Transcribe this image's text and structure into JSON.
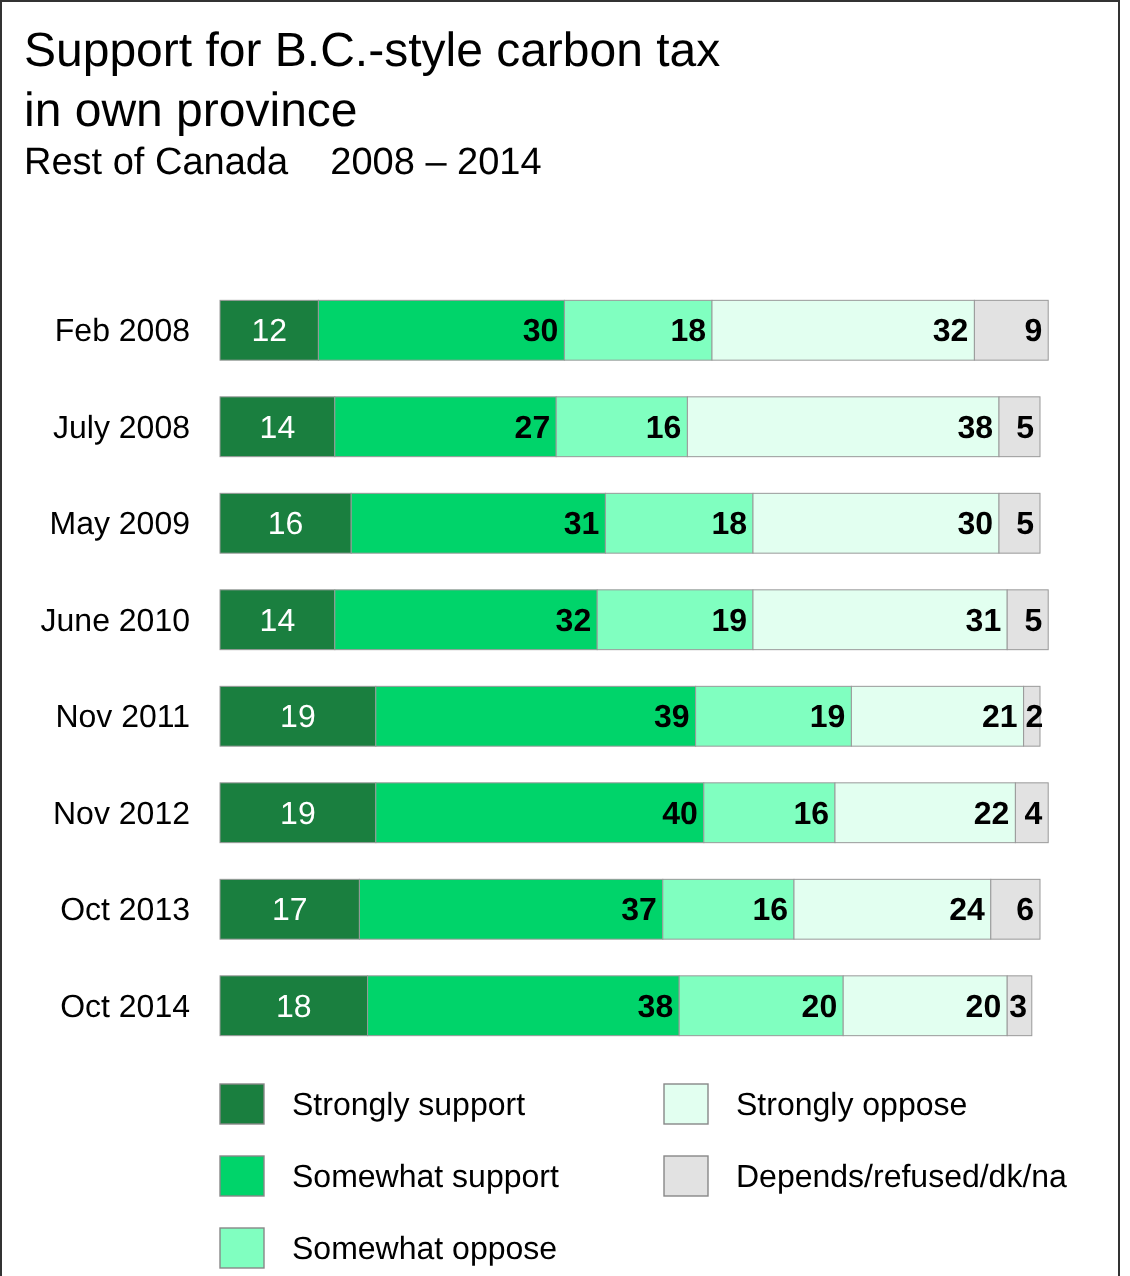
{
  "chart_data": {
    "type": "bar",
    "orientation": "horizontal",
    "stacked": true,
    "data_labels": true,
    "legend": "bottom",
    "title": "Support for B.C.-style carbon tax\nin own province",
    "subtitle": "Rest of Canada    2008 – 2014",
    "categories": [
      "Feb 2008",
      "July 2008",
      "May 2009",
      "June 2010",
      "Nov 2011",
      "Nov 2012",
      "Oct 2013",
      "Oct 2014"
    ],
    "series": [
      {
        "name": "Strongly support",
        "color": "#1a7f3f",
        "values": [
          12,
          14,
          16,
          14,
          19,
          19,
          17,
          18
        ]
      },
      {
        "name": "Somewhat support",
        "color": "#00d46a",
        "values": [
          30,
          27,
          31,
          32,
          39,
          40,
          37,
          38
        ]
      },
      {
        "name": "Somewhat oppose",
        "color": "#80ffc0",
        "values": [
          18,
          16,
          18,
          19,
          19,
          16,
          16,
          20
        ]
      },
      {
        "name": "Strongly oppose",
        "color": "#e2fff0",
        "values": [
          32,
          38,
          30,
          31,
          21,
          22,
          24,
          20
        ]
      },
      {
        "name": "Depends/refused/dk/na",
        "color": "#e2e2e2",
        "values": [
          9,
          5,
          5,
          5,
          2,
          4,
          6,
          3
        ]
      }
    ]
  }
}
